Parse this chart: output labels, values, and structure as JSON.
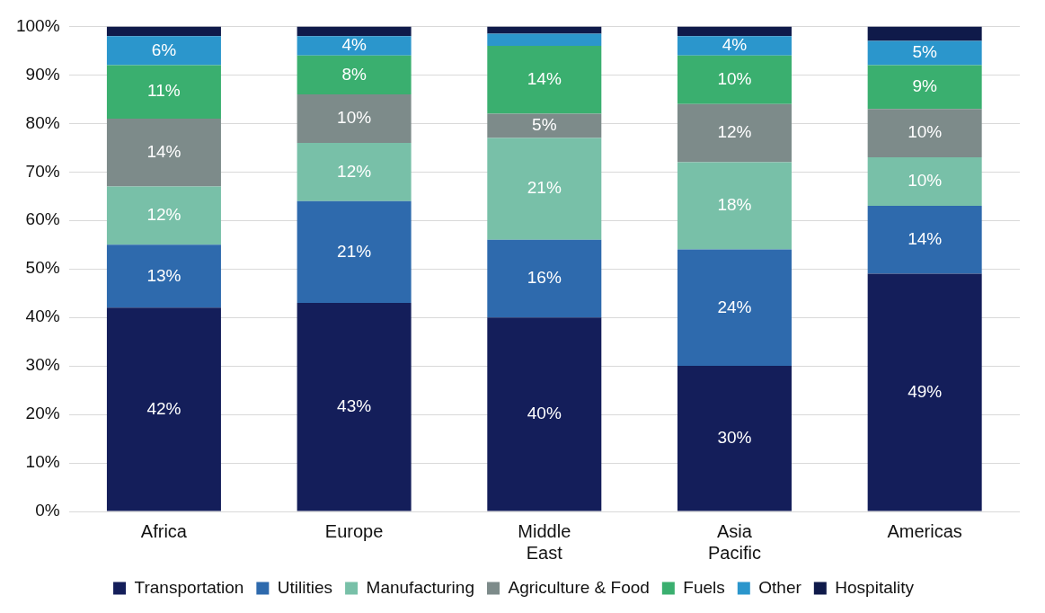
{
  "chart_data": {
    "type": "bar",
    "stacked": true,
    "categories": [
      "Africa",
      "Europe",
      "Middle East",
      "Asia Pacific",
      "Americas"
    ],
    "series": [
      {
        "name": "Transportation",
        "color": "#141e5a",
        "values": [
          42,
          43,
          40,
          30,
          49
        ],
        "value_labels": [
          "42%",
          "43%",
          "40%",
          "30%",
          "49%"
        ]
      },
      {
        "name": "Utilities",
        "color": "#2e6aad",
        "values": [
          13,
          21,
          16,
          24,
          14
        ],
        "value_labels": [
          "13%",
          "21%",
          "16%",
          "24%",
          "14%"
        ]
      },
      {
        "name": "Manufacturing",
        "color": "#78c0a8",
        "values": [
          12,
          12,
          21,
          18,
          10
        ],
        "value_labels": [
          "12%",
          "12%",
          "21%",
          "18%",
          "10%"
        ]
      },
      {
        "name": "Agriculture & Food",
        "color": "#7d8b8a",
        "values": [
          14,
          10,
          5,
          12,
          10
        ],
        "value_labels": [
          "14%",
          "10%",
          "5%",
          "12%",
          "10%"
        ]
      },
      {
        "name": "Fuels",
        "color": "#3aaf6f",
        "values": [
          11,
          8,
          14,
          10,
          9
        ],
        "value_labels": [
          "11%",
          "8%",
          "14%",
          "10%",
          "9%"
        ]
      },
      {
        "name": "Other",
        "color": "#2b96cc",
        "values": [
          6,
          4,
          2.5,
          4,
          5
        ],
        "value_labels": [
          "6%",
          "4%",
          null,
          "4%",
          "5%"
        ]
      },
      {
        "name": "Hospitality",
        "color": "#0f1a4a",
        "values": [
          2,
          2,
          1.5,
          2,
          3
        ]
      }
    ],
    "ylim": [
      0,
      100
    ],
    "yticks": [
      {
        "value": 0,
        "label": "0%"
      },
      {
        "value": 10,
        "label": "10%"
      },
      {
        "value": 20,
        "label": "20%"
      },
      {
        "value": 30,
        "label": "30%"
      },
      {
        "value": 40,
        "label": "40%"
      },
      {
        "value": 50,
        "label": "50%"
      },
      {
        "value": 60,
        "label": "60%"
      },
      {
        "value": 70,
        "label": "70%"
      },
      {
        "value": 80,
        "label": "80%"
      },
      {
        "value": 90,
        "label": "90%"
      },
      {
        "value": 100,
        "label": "100%"
      }
    ],
    "grid": "y",
    "legend": "bottom"
  }
}
